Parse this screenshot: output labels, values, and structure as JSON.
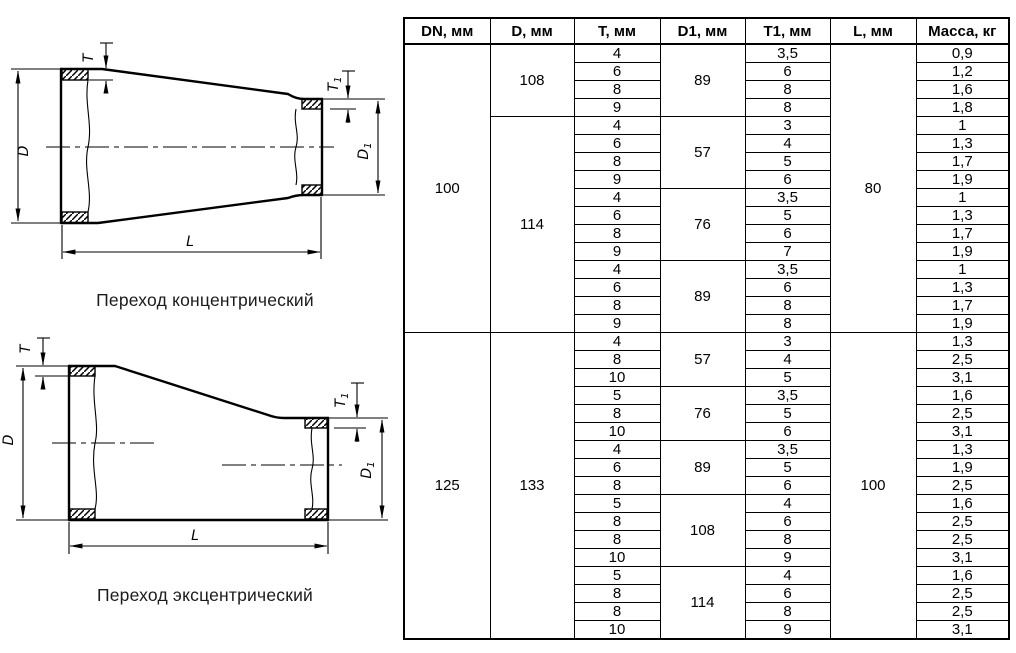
{
  "diagrams": {
    "labels": {
      "t": "T",
      "d": "D",
      "t1_main": "T",
      "t1_sub": "1",
      "d1_main": "D",
      "d1_sub": "1",
      "l": "L"
    },
    "concentric": {
      "caption": "Переход концентрический"
    },
    "eccentric": {
      "caption": "Переход эксцентрический"
    },
    "line_color": "#000000"
  },
  "table": {
    "headers": [
      "DN, мм",
      "D, мм",
      "T, мм",
      "D1, мм",
      "T1, мм",
      "L, мм",
      "Масса, кг"
    ],
    "sections": [
      {
        "dn": "100",
        "l": "80",
        "d_groups": [
          {
            "d": "108",
            "d1_groups": [
              {
                "d1": "89",
                "rows": [
                  [
                    "4",
                    "3,5",
                    "0,9"
                  ],
                  [
                    "6",
                    "6",
                    "1,2"
                  ],
                  [
                    "8",
                    "8",
                    "1,6"
                  ],
                  [
                    "9",
                    "8",
                    "1,8"
                  ]
                ]
              }
            ]
          },
          {
            "d": "114",
            "d1_groups": [
              {
                "d1": "57",
                "rows": [
                  [
                    "4",
                    "3",
                    "1"
                  ],
                  [
                    "6",
                    "4",
                    "1,3"
                  ],
                  [
                    "8",
                    "5",
                    "1,7"
                  ],
                  [
                    "9",
                    "6",
                    "1,9"
                  ]
                ]
              },
              {
                "d1": "76",
                "rows": [
                  [
                    "4",
                    "3,5",
                    "1"
                  ],
                  [
                    "6",
                    "5",
                    "1,3"
                  ],
                  [
                    "8",
                    "6",
                    "1,7"
                  ],
                  [
                    "9",
                    "7",
                    "1,9"
                  ]
                ]
              },
              {
                "d1": "89",
                "rows": [
                  [
                    "4",
                    "3,5",
                    "1"
                  ],
                  [
                    "6",
                    "6",
                    "1,3"
                  ],
                  [
                    "8",
                    "8",
                    "1,7"
                  ],
                  [
                    "9",
                    "8",
                    "1,9"
                  ]
                ]
              }
            ]
          }
        ]
      },
      {
        "dn": "125",
        "l": "100",
        "d_groups": [
          {
            "d": "133",
            "d1_groups": [
              {
                "d1": "57",
                "rows": [
                  [
                    "4",
                    "3",
                    "1,3"
                  ],
                  [
                    "8",
                    "4",
                    "2,5"
                  ],
                  [
                    "10",
                    "5",
                    "3,1"
                  ]
                ]
              },
              {
                "d1": "76",
                "rows": [
                  [
                    "5",
                    "3,5",
                    "1,6"
                  ],
                  [
                    "8",
                    "5",
                    "2,5"
                  ],
                  [
                    "10",
                    "6",
                    "3,1"
                  ]
                ]
              },
              {
                "d1": "89",
                "rows": [
                  [
                    "4",
                    "3,5",
                    "1,3"
                  ],
                  [
                    "6",
                    "5",
                    "1,9"
                  ],
                  [
                    "8",
                    "6",
                    "2,5"
                  ]
                ]
              },
              {
                "d1": "108",
                "rows": [
                  [
                    "5",
                    "4",
                    "1,6"
                  ],
                  [
                    "8",
                    "6",
                    "2,5"
                  ],
                  [
                    "8",
                    "8",
                    "2,5"
                  ],
                  [
                    "10",
                    "9",
                    "3,1"
                  ]
                ]
              },
              {
                "d1": "114",
                "rows": [
                  [
                    "5",
                    "4",
                    "1,6"
                  ],
                  [
                    "8",
                    "6",
                    "2,5"
                  ],
                  [
                    "8",
                    "8",
                    "2,5"
                  ],
                  [
                    "10",
                    "9",
                    "3,1"
                  ]
                ]
              }
            ]
          }
        ]
      }
    ]
  }
}
